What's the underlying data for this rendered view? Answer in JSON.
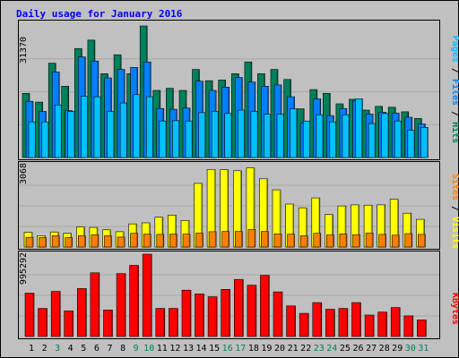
{
  "chart_data": {
    "type": "bar",
    "title": "Daily usage for January 2016",
    "days": [
      "1",
      "2",
      "3",
      "4",
      "5",
      "6",
      "7",
      "8",
      "9",
      "10",
      "11",
      "12",
      "13",
      "14",
      "15",
      "16",
      "17",
      "18",
      "19",
      "20",
      "21",
      "22",
      "23",
      "24",
      "25",
      "26",
      "27",
      "28",
      "29",
      "30",
      "31"
    ],
    "weekend_days": [
      "3",
      "9",
      "10",
      "16",
      "17",
      "23",
      "24",
      "30",
      "31"
    ],
    "panels": {
      "hits_files_pages": {
        "max_label": "31370",
        "ymax": 31370,
        "legend": {
          "pages": "Pages",
          "files": "Files",
          "hits": "Hits"
        },
        "series": {
          "hits": [
            15300,
            13200,
            22500,
            17000,
            26000,
            28000,
            20000,
            24500,
            20000,
            31370,
            16000,
            16500,
            16000,
            21000,
            18300,
            18500,
            20000,
            22800,
            20000,
            21000,
            18600,
            11600,
            16200,
            15300,
            12800,
            13900,
            11300,
            12200,
            12000,
            10900,
            9300
          ],
          "files": [
            13400,
            11000,
            20400,
            11200,
            24000,
            23000,
            19000,
            21000,
            21500,
            22800,
            11700,
            11500,
            11800,
            18200,
            16000,
            16800,
            19100,
            18000,
            17000,
            17300,
            14500,
            8200,
            14000,
            10000,
            11700,
            13500,
            10400,
            10800,
            10600,
            9600,
            8000
          ],
          "pages": [
            8500,
            8500,
            12500,
            11000,
            14600,
            14500,
            11000,
            13000,
            15000,
            14500,
            8700,
            8800,
            8700,
            10700,
            11000,
            10500,
            11300,
            11000,
            10300,
            10300,
            11600,
            8700,
            10200,
            8500,
            10200,
            14000,
            8100,
            10500,
            8700,
            6500,
            7200
          ]
        }
      },
      "visits_sites": {
        "max_label": "3068",
        "ymax": 3068,
        "legend": {
          "sites": "Sites",
          "visits": "Visits"
        },
        "series": {
          "visits": [
            550,
            420,
            560,
            510,
            750,
            730,
            640,
            570,
            860,
            900,
            1110,
            1190,
            990,
            2370,
            2890,
            2880,
            2840,
            2950,
            2540,
            2130,
            1600,
            1460,
            1830,
            1210,
            1530,
            1570,
            1560,
            1570,
            1780,
            1260,
            1030
          ],
          "sites": [
            360,
            350,
            420,
            350,
            420,
            460,
            420,
            370,
            510,
            480,
            470,
            480,
            480,
            520,
            570,
            580,
            580,
            650,
            580,
            490,
            480,
            420,
            510,
            450,
            490,
            460,
            520,
            470,
            440,
            500,
            470
          ]
        }
      },
      "kbytes": {
        "max_label": "995292",
        "ymax": 995292,
        "legend": {
          "kbytes": "KBytes"
        },
        "series": {
          "kbytes": [
            525000,
            340000,
            545000,
            310000,
            580000,
            770000,
            320000,
            760000,
            860000,
            995292,
            340000,
            340000,
            560000,
            515000,
            480000,
            570000,
            690000,
            620000,
            740000,
            540000,
            370000,
            280000,
            410000,
            330000,
            340000,
            410000,
            260000,
            295000,
            350000,
            250000,
            200000
          ]
        }
      }
    },
    "colors": {
      "background": "#c0c0c0",
      "hits": "#00805c",
      "files": "#0080ff",
      "pages": "#00c0ff",
      "visits": "#ffff00",
      "sites": "#ff8000",
      "kbytes": "#ff0000",
      "title": "#0000ff",
      "weekday_label": "#000000",
      "weekend_label": "#00805c",
      "pages_mark": "#0000c0"
    }
  }
}
